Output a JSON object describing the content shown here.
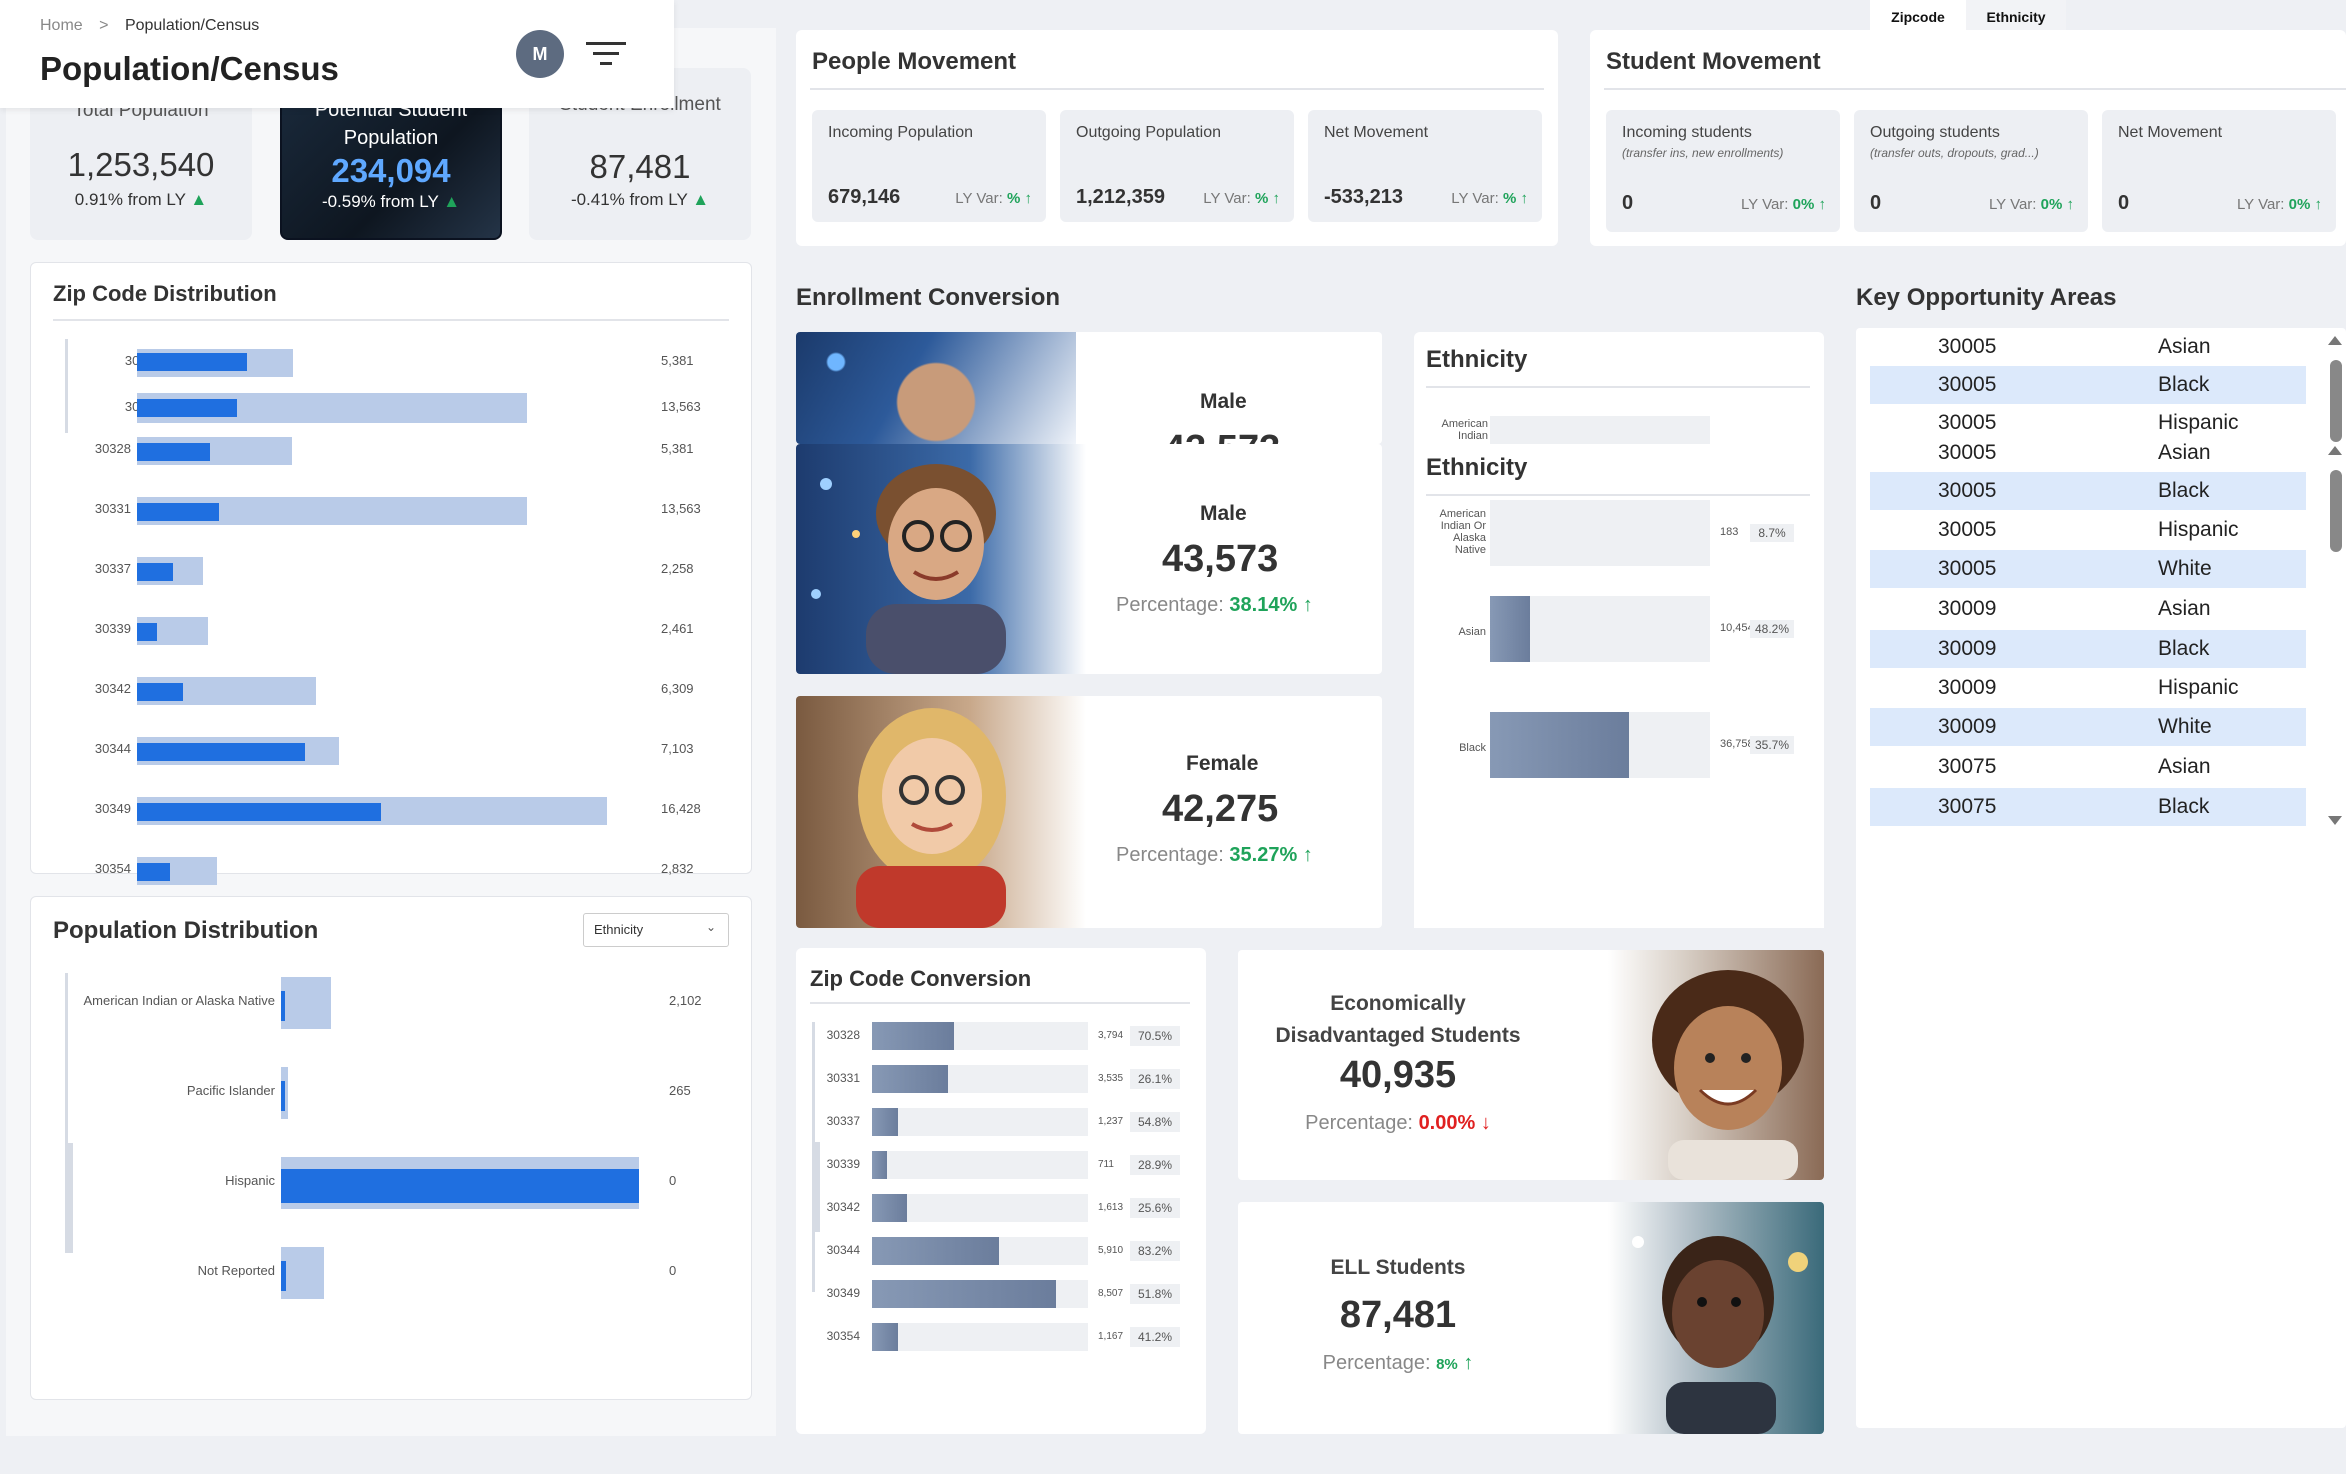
{
  "header": {
    "breadcrumb_home": "Home",
    "breadcrumb_sep": ">",
    "breadcrumb_current": "Population/Census",
    "page_title": "Population/Census",
    "avatar_initial": "M"
  },
  "top_tabs": [
    "Zipcode",
    "Ethnicity"
  ],
  "kpis": [
    {
      "label": "Total Population",
      "value": "1,253,540",
      "variance": "0.91% from LY"
    },
    {
      "label": "Potential Student Population",
      "value": "234,094",
      "variance": "-0.59% from LY"
    },
    {
      "label": "Student Enrollment",
      "value": "87,481",
      "variance": "-0.41% from LY"
    }
  ],
  "zip_distribution": {
    "title": "Zip Code Distribution",
    "rows": [
      {
        "zip": "30328",
        "value": "5,381",
        "fill": 0.47,
        "total": 0.33
      },
      {
        "zip": "30331",
        "value": "13,563",
        "fill": 0.21,
        "total": 0.83
      },
      {
        "zip": "30337",
        "value": "2,258",
        "fill": 0.54,
        "total": 0.14
      },
      {
        "zip": "30339",
        "value": "2,461",
        "fill": 0.29,
        "total": 0.15
      },
      {
        "zip": "30342",
        "value": "6,309",
        "fill": 0.26,
        "total": 0.38
      },
      {
        "zip": "30344",
        "value": "7,103",
        "fill": 0.83,
        "total": 0.43
      },
      {
        "zip": "30349",
        "value": "16,428",
        "fill": 0.52,
        "total": 1.0
      },
      {
        "zip": "30354",
        "value": "2,832",
        "fill": 0.41,
        "total": 0.17
      }
    ]
  },
  "population_distribution": {
    "title": "Population Distribution",
    "dropdown_value": "Ethnicity",
    "rows": [
      {
        "label": "American Indian or Alaska Native",
        "value": "2,102",
        "fill": 0.02,
        "total": 0.14
      },
      {
        "label": "Pacific Islander",
        "value": "265",
        "fill": 0.01,
        "total": 0.02
      },
      {
        "label": "Hispanic",
        "value": "0",
        "fill": 1.0,
        "total": 1.0
      },
      {
        "label": "Not Reported",
        "value": "0",
        "fill": 0.12,
        "total": 0.12
      }
    ]
  },
  "people_movement": {
    "title": "People Movement",
    "var_label": "LY Var:",
    "boxes": [
      {
        "label": "Incoming Population",
        "value": "679,146",
        "var": "%"
      },
      {
        "label": "Outgoing Population",
        "value": "1,212,359",
        "var": "%"
      },
      {
        "label": "Net Movement",
        "value": "-533,213",
        "var": "%"
      }
    ]
  },
  "student_movement": {
    "title": "Student Movement",
    "var_label": "LY Var:",
    "boxes": [
      {
        "label": "Incoming students",
        "sub": "(transfer ins, new enrollments)",
        "value": "0",
        "var": "0%"
      },
      {
        "label": "Outgoing students",
        "sub": "(transfer outs, dropouts, grad...)",
        "value": "0",
        "var": "0%"
      },
      {
        "label": "Net Movement",
        "sub": "",
        "value": "0",
        "var": "0%"
      }
    ]
  },
  "enrollment_conversion": {
    "title": "Enrollment Conversion",
    "pct_label": "Percentage:",
    "male": {
      "label": "Male",
      "value": "43,573",
      "pct": "38.14%"
    },
    "male_ghost": {
      "label": "Male",
      "value": "43,573"
    },
    "female": {
      "label": "Female",
      "value": "42,275",
      "pct": "35.27%"
    }
  },
  "ethnicity": {
    "title": "Ethnicity",
    "ghost_label": "American Indian",
    "rows": [
      {
        "label": "American Indian Or Alaska Native",
        "count": "183",
        "pct": "8.7%",
        "fill": 0.0
      },
      {
        "label": "Asian",
        "count": "10,454",
        "pct": "48.2%",
        "fill": 0.18
      },
      {
        "label": "Black",
        "count": "36,758",
        "pct": "35.7%",
        "fill": 0.63
      }
    ]
  },
  "zip_conversion": {
    "title": "Zip Code Conversion",
    "rows": [
      {
        "zip": "30328",
        "count": "3,794",
        "pct": "70.5%",
        "fill": 0.38
      },
      {
        "zip": "30331",
        "count": "3,535",
        "pct": "26.1%",
        "fill": 0.35
      },
      {
        "zip": "30337",
        "count": "1,237",
        "pct": "54.8%",
        "fill": 0.12
      },
      {
        "zip": "30339",
        "count": "711",
        "pct": "28.9%",
        "fill": 0.07
      },
      {
        "zip": "30342",
        "count": "1,613",
        "pct": "25.6%",
        "fill": 0.16
      },
      {
        "zip": "30344",
        "count": "5,910",
        "pct": "83.2%",
        "fill": 0.59
      },
      {
        "zip": "30349",
        "count": "8,507",
        "pct": "51.8%",
        "fill": 0.85
      },
      {
        "zip": "30354",
        "count": "1,167",
        "pct": "41.2%",
        "fill": 0.12
      }
    ]
  },
  "econ": {
    "label_line1": "Economically",
    "label_line2": "Disadvantaged Students",
    "value": "40,935",
    "pct_label": "Percentage:",
    "pct": "0.00%"
  },
  "ell": {
    "label": "ELL Students",
    "value": "87,481",
    "pct_label": "Percentage:",
    "pct": "8%"
  },
  "key_opportunity": {
    "title": "Key Opportunity Areas",
    "rows": [
      {
        "zip": "30005",
        "eth": "Asian"
      },
      {
        "zip": "30005",
        "eth": "Black"
      },
      {
        "zip": "30005",
        "eth": "Hispanic"
      },
      {
        "zip": "30005",
        "eth": "Asian"
      },
      {
        "zip": "30005",
        "eth": "Black"
      },
      {
        "zip": "30005",
        "eth": "Hispanic"
      },
      {
        "zip": "30005",
        "eth": "White"
      },
      {
        "zip": "30009",
        "eth": "Asian"
      },
      {
        "zip": "30009",
        "eth": "Black"
      },
      {
        "zip": "30009",
        "eth": "Hispanic"
      },
      {
        "zip": "30009",
        "eth": "White"
      },
      {
        "zip": "30075",
        "eth": "Asian"
      },
      {
        "zip": "30075",
        "eth": "Black"
      }
    ]
  },
  "colors": {
    "accent": "#1f6fe0",
    "track": "#b9cbe8",
    "positive": "#1fa35a",
    "negative": "#e02020",
    "highlight_row": "#dce9fb"
  }
}
